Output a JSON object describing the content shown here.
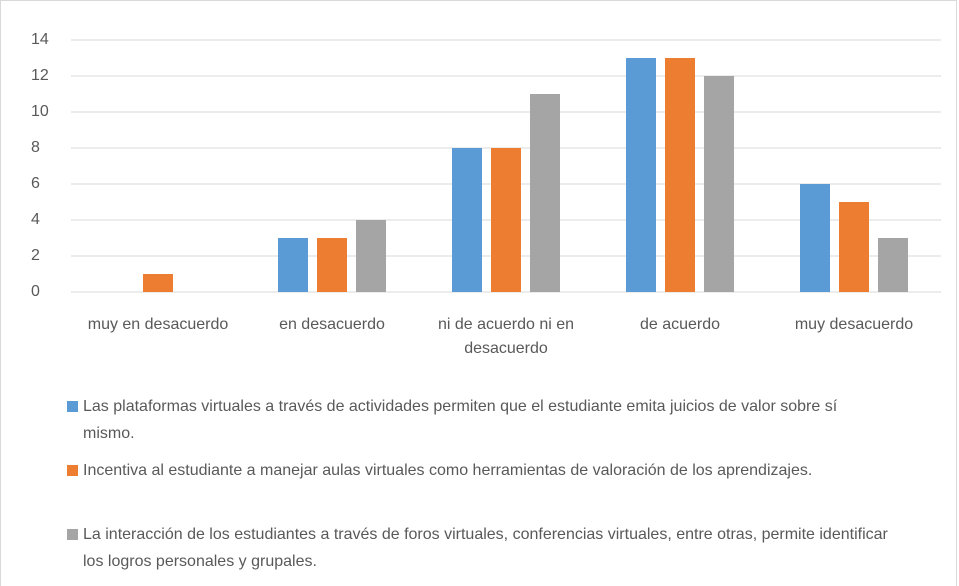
{
  "chart_data": {
    "type": "bar",
    "categories": [
      "muy en desacuerdo",
      "en desacuerdo",
      "ni de acuerdo ni en desacuerdo",
      "de acuerdo",
      "muy desacuerdo"
    ],
    "series": [
      {
        "name": "Las plataformas virtuales a través de actividades permiten que el estudiante emita juicios de valor sobre sí mismo.",
        "color": "#5b9bd5",
        "values": [
          0,
          3,
          8,
          13,
          6
        ]
      },
      {
        "name": "Incentiva al estudiante a manejar aulas virtuales como herramientas de valoración de los aprendizajes.",
        "color": "#ed7d31",
        "values": [
          1,
          3,
          8,
          13,
          5
        ]
      },
      {
        "name": "La interacción de los estudiantes  a través de foros virtuales, conferencias virtuales, entre otras, permite identificar los logros personales y grupales.",
        "color": "#a5a5a5",
        "values": [
          0,
          4,
          11,
          12,
          3
        ]
      }
    ],
    "ylim": [
      0,
      14
    ],
    "yticks": [
      0,
      2,
      4,
      6,
      8,
      10,
      12,
      14
    ],
    "grid": true,
    "legend": "bottom"
  }
}
